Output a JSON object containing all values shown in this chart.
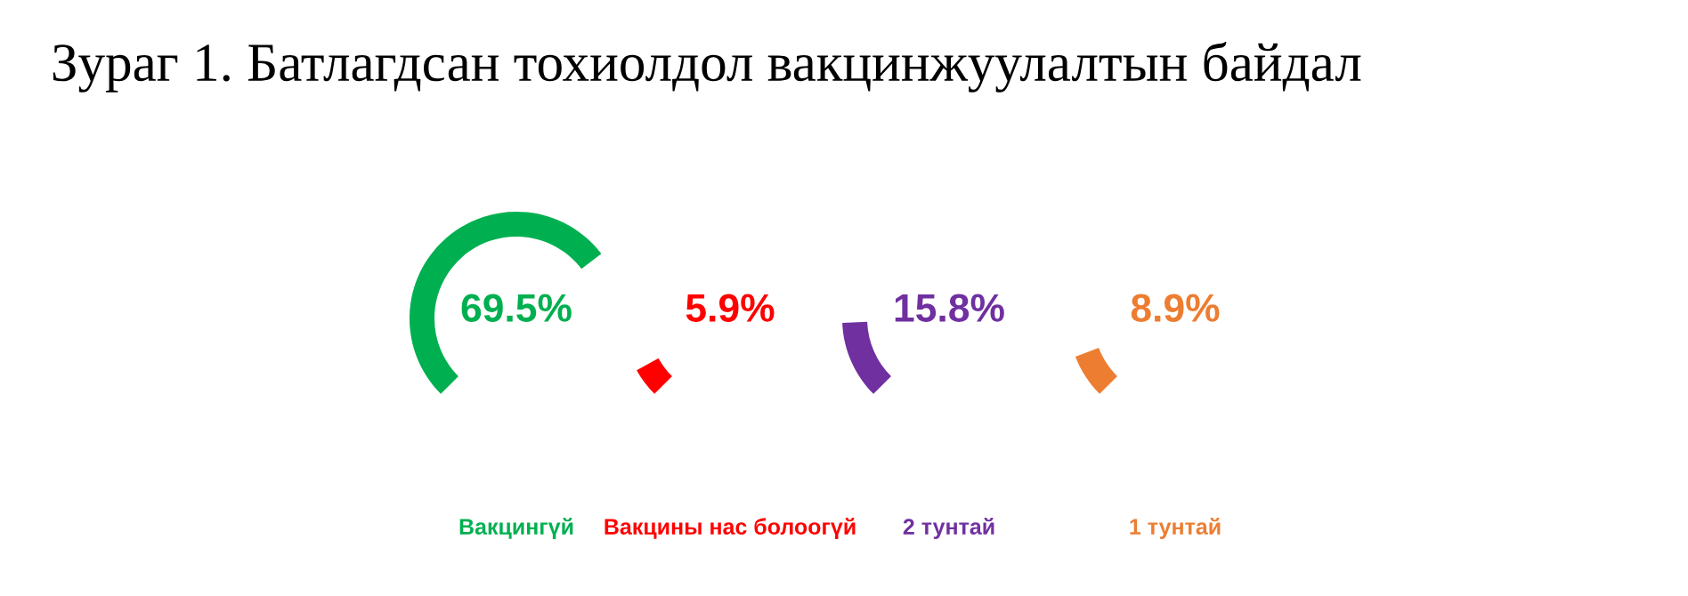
{
  "chart_data": {
    "type": "other",
    "title": "Зураг 1. Батлагдсан тохиолдол вакцинжуулалтын байдал",
    "categories": [
      "Вакцингүй",
      "Вакцины нас болоогүй",
      "2 тунтай",
      "1 тунтай"
    ],
    "values": [
      69.5,
      5.9,
      15.8,
      8.9
    ],
    "colors": [
      "#00b050",
      "#ff0000",
      "#7030a0",
      "#ed7d31"
    ],
    "value_labels": [
      "69.5%",
      "5.9%",
      "15.8%",
      "8.9%"
    ]
  }
}
